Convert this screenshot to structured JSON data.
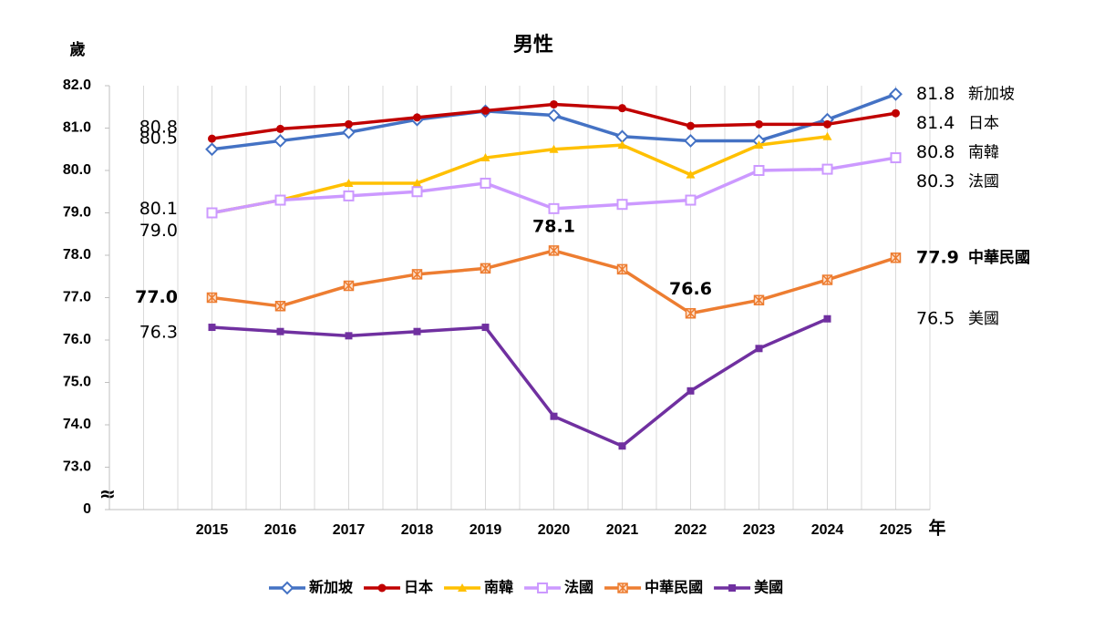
{
  "chart_data": {
    "type": "line",
    "title": "男性",
    "y_label": "歲",
    "x_label": "年",
    "axis_break": true,
    "categories": [
      "2015",
      "2016",
      "2017",
      "2018",
      "2019",
      "2020",
      "2021",
      "2022",
      "2023",
      "2024",
      "2025"
    ],
    "ylim": [
      0,
      82
    ],
    "yticks": [
      0,
      {
        "value": 73,
        "label": "73.0"
      },
      {
        "value": 74,
        "label": "74.0"
      },
      {
        "value": 75,
        "label": "75.0"
      },
      {
        "value": 76,
        "label": "76.0"
      },
      {
        "value": 77,
        "label": "77.0"
      },
      {
        "value": 78,
        "label": "78.0"
      },
      {
        "value": 79,
        "label": "79.0"
      },
      {
        "value": 80,
        "label": "80.0"
      },
      {
        "value": 81,
        "label": "81.0"
      },
      {
        "value": 82,
        "label": "82.0"
      }
    ],
    "grid": true,
    "annotations": [
      "80.1"
    ],
    "series": [
      {
        "name": "新加坡",
        "color": "#4472c4",
        "marker": "diamond",
        "values": [
          80.5,
          80.7,
          80.9,
          81.2,
          81.4,
          81.3,
          80.8,
          80.7,
          80.7,
          81.2,
          81.8
        ],
        "value_labels": [
          "80.5",
          null,
          null,
          null,
          null,
          null,
          null,
          null,
          null,
          null,
          "81.8"
        ]
      },
      {
        "name": "日本",
        "color": "#c00000",
        "marker": "circle",
        "values": [
          80.75,
          80.98,
          81.09,
          81.25,
          81.41,
          81.56,
          81.47,
          81.05,
          81.09,
          81.09,
          81.35
        ],
        "value_labels": [
          "80.8",
          null,
          null,
          null,
          null,
          null,
          null,
          null,
          null,
          null,
          "81.4"
        ]
      },
      {
        "name": "南韓",
        "color": "#ffc000",
        "marker": "triangle",
        "values": [
          79.0,
          79.3,
          79.7,
          79.7,
          80.3,
          80.5,
          80.6,
          79.9,
          80.6,
          80.8,
          null
        ],
        "value_labels": [
          "79.0",
          null,
          null,
          null,
          null,
          null,
          null,
          null,
          null,
          "80.8",
          null
        ]
      },
      {
        "name": "法國",
        "color": "#cc99ff",
        "marker": "hollow-square",
        "values": [
          79.0,
          79.3,
          79.4,
          79.5,
          79.7,
          79.1,
          79.2,
          79.3,
          80.0,
          80.03,
          80.3
        ],
        "value_labels": [
          null,
          null,
          null,
          null,
          null,
          null,
          null,
          null,
          null,
          null,
          "80.3"
        ]
      },
      {
        "name": "中華民國",
        "color": "#ed7d31",
        "marker": "star-square",
        "emphasis": true,
        "values": [
          77.0,
          76.8,
          77.28,
          77.55,
          77.69,
          78.11,
          77.67,
          76.63,
          76.94,
          77.42,
          77.94
        ],
        "value_labels": [
          "77.0",
          null,
          null,
          null,
          null,
          "78.1",
          null,
          "76.6",
          null,
          null,
          "77.9"
        ]
      },
      {
        "name": "美國",
        "color": "#7030a0",
        "marker": "square",
        "values": [
          76.3,
          76.2,
          76.1,
          76.2,
          76.3,
          74.2,
          73.5,
          74.8,
          75.8,
          76.5,
          null
        ],
        "value_labels": [
          "76.3",
          null,
          null,
          null,
          null,
          null,
          null,
          null,
          null,
          "76.5",
          null
        ]
      }
    ]
  }
}
